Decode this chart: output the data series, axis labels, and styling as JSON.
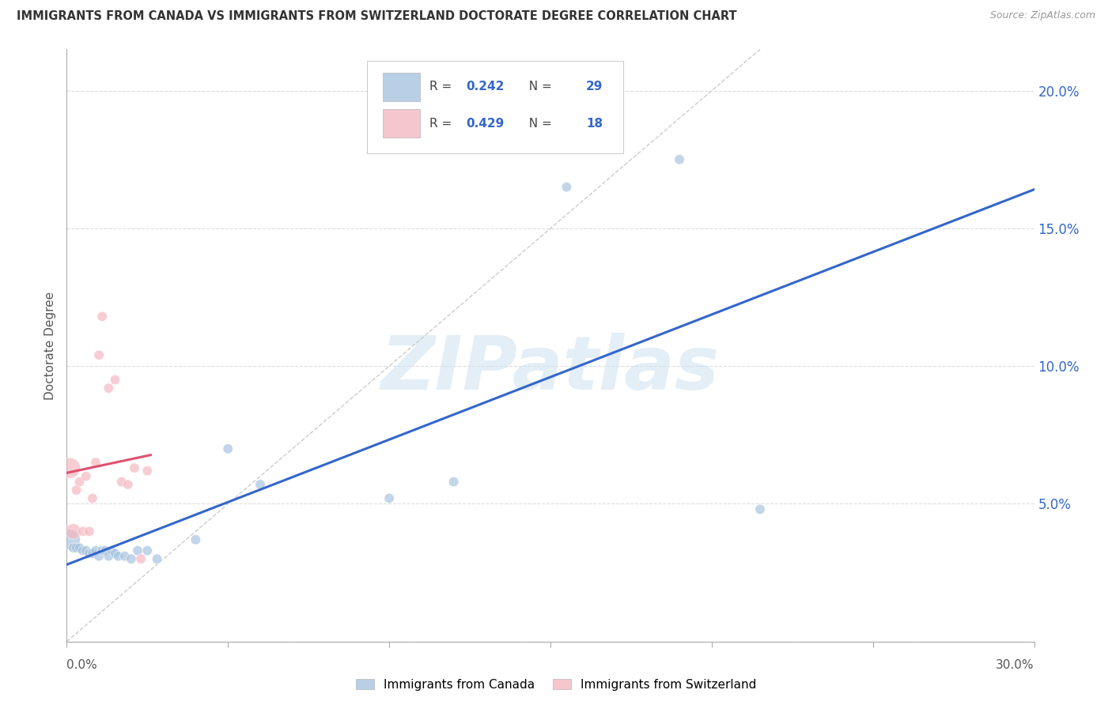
{
  "title": "IMMIGRANTS FROM CANADA VS IMMIGRANTS FROM SWITZERLAND DOCTORATE DEGREE CORRELATION CHART",
  "source": "Source: ZipAtlas.com",
  "ylabel": "Doctorate Degree",
  "canada_color": "#a8c4e0",
  "switzerland_color": "#f4b8c1",
  "trend_canada_color": "#3366cc",
  "trend_switzerland_color": "#e05070",
  "diagonal_color": "#cccccc",
  "xlim": [
    0.0,
    0.3
  ],
  "ylim": [
    0.0,
    0.215
  ],
  "ytick_vals": [
    0.0,
    0.05,
    0.1,
    0.15,
    0.2
  ],
  "ytick_labels": [
    "",
    "5.0%",
    "10.0%",
    "15.0%",
    "20.0%"
  ],
  "canada_R": "0.242",
  "canada_N": "29",
  "switzerland_R": "0.429",
  "switzerland_N": "18",
  "canada_points_x": [
    0.001,
    0.002,
    0.003,
    0.004,
    0.005,
    0.006,
    0.007,
    0.008,
    0.009,
    0.01,
    0.011,
    0.012,
    0.013,
    0.014,
    0.015,
    0.016,
    0.018,
    0.02,
    0.022,
    0.025,
    0.028,
    0.04,
    0.05,
    0.06,
    0.1,
    0.12,
    0.155,
    0.19,
    0.215
  ],
  "canada_points_y": [
    0.037,
    0.034,
    0.034,
    0.034,
    0.033,
    0.033,
    0.032,
    0.032,
    0.033,
    0.031,
    0.033,
    0.033,
    0.031,
    0.033,
    0.032,
    0.031,
    0.031,
    0.03,
    0.033,
    0.033,
    0.03,
    0.037,
    0.07,
    0.057,
    0.052,
    0.058,
    0.165,
    0.175,
    0.048
  ],
  "canada_sizes": [
    350,
    80,
    80,
    80,
    80,
    80,
    80,
    80,
    80,
    80,
    80,
    80,
    80,
    80,
    80,
    80,
    80,
    80,
    80,
    80,
    80,
    80,
    80,
    80,
    80,
    80,
    80,
    80,
    80
  ],
  "switzerland_points_x": [
    0.001,
    0.002,
    0.003,
    0.004,
    0.005,
    0.006,
    0.007,
    0.008,
    0.009,
    0.01,
    0.011,
    0.013,
    0.015,
    0.017,
    0.019,
    0.021,
    0.023,
    0.025
  ],
  "switzerland_points_y": [
    0.063,
    0.04,
    0.055,
    0.058,
    0.04,
    0.06,
    0.04,
    0.052,
    0.065,
    0.104,
    0.118,
    0.092,
    0.095,
    0.058,
    0.057,
    0.063,
    0.03,
    0.062
  ],
  "switzerland_sizes": [
    350,
    200,
    80,
    80,
    80,
    80,
    80,
    80,
    80,
    80,
    80,
    80,
    80,
    80,
    80,
    80,
    80,
    80
  ],
  "watermark_text": "ZIPatlas",
  "background_color": "#ffffff",
  "grid_color": "#dddddd",
  "canada_legend_label": "Immigrants from Canada",
  "switzerland_legend_label": "Immigrants from Switzerland"
}
